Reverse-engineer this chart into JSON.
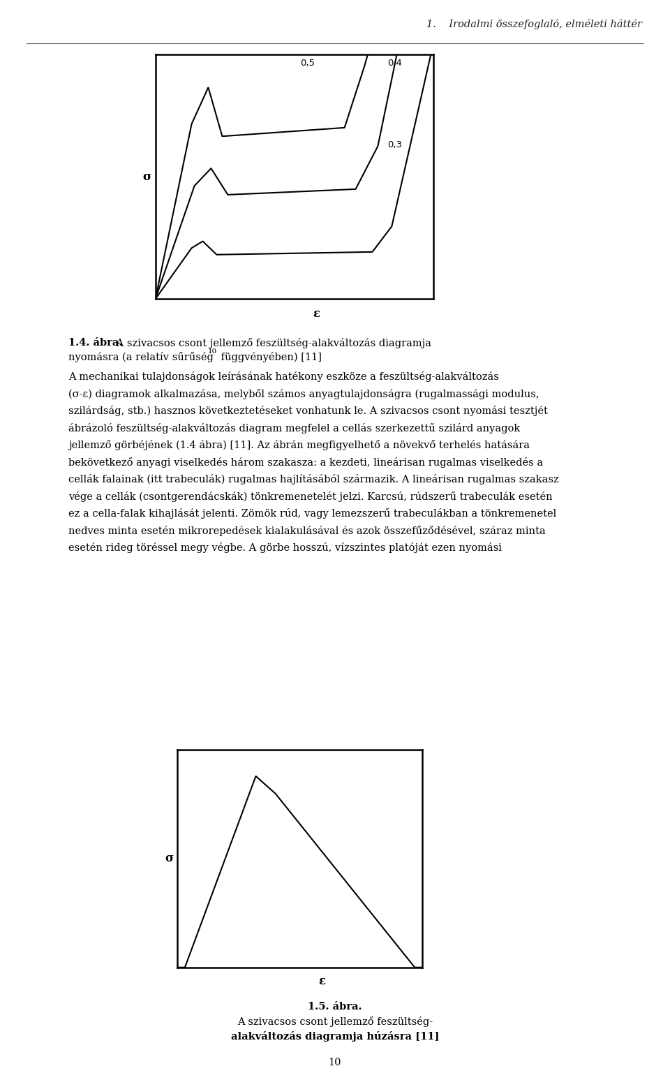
{
  "page_width": 9.6,
  "page_height": 15.57,
  "bg_color": "#ffffff",
  "header_text": "1.    Irodalmi összefoglaló, elméleti háttér",
  "fig1_caption_bold": "1.4. ábra.",
  "fig1_caption_normal": " A szivacsos csont jellemző feszültség-alakváltozás diagramja nyomásra (a relatív sűrűség",
  "fig1_caption_super": "10",
  "fig1_caption_end": " függvényében) [11]",
  "fig2_caption_bold": "1.5. ábra.",
  "fig2_caption_normal": " A szivacsos csont jellemző feszültség-alakváltozás diagramja húzásra [11]",
  "page_number": "10",
  "curve_labels": [
    "0,5",
    "0,4",
    "0,3"
  ],
  "sigma_label": "σ",
  "epsilon_label": "ε",
  "body_lines": [
    "A mechanikai tulajdonságok leírásának hatékony eszköze a feszültség-alakváltozás",
    "(σ-ε) diagramok alkalmazása, melyből számos anyagtulajdonságra (rugalmassági modulus,",
    "szilárdság, stb.) hasznos következtetéseket vonhatunk le. A szivacsos csont nyomási tesztjét",
    "ábrázoló feszültség-alakváltozás diagram megfelel a cellás szerkezettű szilárd anyagok",
    "jellemző görbéjének (1.4 ábra) [11]. Az ábrán megfigyelhető a növekvő terhelés hatására",
    "bekövetkező anyagi viselkedés három szakasza: a kezdeti, lineárisan rugalmas viselkedés a",
    "cellák falainak (itt trabeculák) rugalmas hajlításából származik. A lineárisan rugalmas szakasz",
    "vége a cellák (csontgerendácskák) tönkremenetelét jelzi. Karcsú, rúdszerű trabeculák esetén",
    "ez a cella-falak kihajlását jelenti. Zömök rúd, vagy lemezszerű trabeculákban a tönkremenetel",
    "nedves minta esetén mikrorepedések kialakulásával és azok összefűződésével, száraz minta",
    "esetén rideg töréssel megy végbe. A görbe hosszú, vízszintes platóját ezen nyomási"
  ]
}
